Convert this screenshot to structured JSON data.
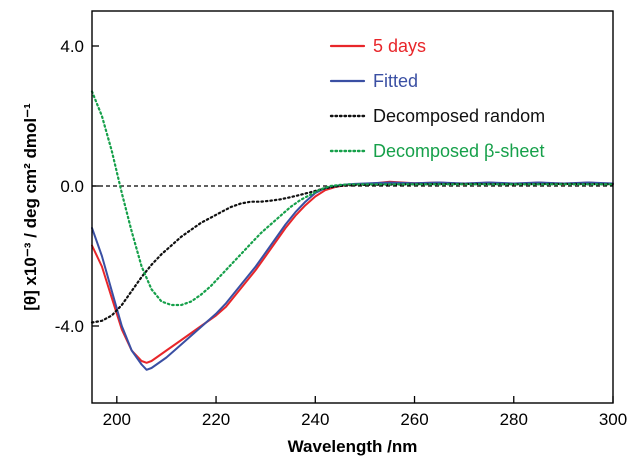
{
  "chart_data": {
    "type": "line",
    "xlabel": "Wavelength /nm",
    "ylabel": "[θ] x10⁻³ / deg cm² dmol⁻¹",
    "xlim": [
      195,
      300
    ],
    "ylim": [
      -6.2,
      5.0
    ],
    "xticks": [
      200,
      220,
      240,
      260,
      280,
      300
    ],
    "yticks": [
      {
        "value": 4.0,
        "label": "4.0"
      },
      {
        "value": 0.0,
        "label": "0.0"
      },
      {
        "value": -4.0,
        "label": "-4.0"
      }
    ],
    "legend_position": "top-right",
    "zero_line": true,
    "series": [
      {
        "name": "5 days",
        "color": "#e8262a",
        "style": "solid",
        "x": [
          195,
          197,
          199,
          201,
          203,
          205,
          206,
          207,
          208,
          210,
          212,
          214,
          216,
          218,
          220,
          222,
          224,
          226,
          228,
          230,
          232,
          234,
          236,
          238,
          240,
          242,
          244,
          246,
          248,
          250,
          255,
          260,
          265,
          270,
          275,
          280,
          285,
          290,
          295,
          300
        ],
        "y": [
          -1.7,
          -2.3,
          -3.2,
          -4.1,
          -4.7,
          -5.0,
          -5.05,
          -5.0,
          -4.9,
          -4.7,
          -4.5,
          -4.3,
          -4.1,
          -3.9,
          -3.7,
          -3.45,
          -3.1,
          -2.75,
          -2.4,
          -2.0,
          -1.6,
          -1.2,
          -0.85,
          -0.55,
          -0.3,
          -0.12,
          -0.03,
          0.02,
          0.05,
          0.05,
          0.12,
          0.08,
          0.1,
          0.05,
          0.1,
          0.05,
          0.1,
          0.05,
          0.1,
          0.05
        ]
      },
      {
        "name": "Fitted",
        "color": "#3a4fa3",
        "style": "solid",
        "x": [
          195,
          197,
          199,
          201,
          203,
          205,
          206,
          207,
          208,
          210,
          212,
          214,
          216,
          218,
          220,
          222,
          224,
          226,
          228,
          230,
          232,
          234,
          236,
          238,
          240,
          242,
          244,
          246,
          248,
          250,
          255,
          260,
          265,
          270,
          275,
          280,
          285,
          290,
          295,
          300
        ],
        "y": [
          -1.2,
          -2.0,
          -3.0,
          -4.0,
          -4.7,
          -5.1,
          -5.25,
          -5.2,
          -5.1,
          -4.9,
          -4.65,
          -4.4,
          -4.15,
          -3.9,
          -3.65,
          -3.35,
          -3.0,
          -2.65,
          -2.3,
          -1.9,
          -1.5,
          -1.1,
          -0.75,
          -0.45,
          -0.2,
          -0.06,
          0.0,
          0.04,
          0.06,
          0.07,
          0.1,
          0.08,
          0.1,
          0.07,
          0.1,
          0.07,
          0.1,
          0.07,
          0.1,
          0.07
        ]
      },
      {
        "name": "Decomposed random",
        "color": "#111111",
        "style": "dotted",
        "x": [
          195,
          197,
          199,
          201,
          203,
          205,
          207,
          209,
          211,
          213,
          215,
          217,
          219,
          221,
          223,
          225,
          227,
          229,
          231,
          233,
          235,
          237,
          239,
          241,
          243,
          245,
          247,
          250,
          260,
          270,
          280,
          290,
          300
        ],
        "y": [
          -3.9,
          -3.85,
          -3.7,
          -3.4,
          -3.0,
          -2.6,
          -2.25,
          -1.95,
          -1.7,
          -1.45,
          -1.25,
          -1.05,
          -0.9,
          -0.75,
          -0.6,
          -0.5,
          -0.45,
          -0.45,
          -0.42,
          -0.38,
          -0.32,
          -0.25,
          -0.18,
          -0.1,
          -0.04,
          0.0,
          0.02,
          0.03,
          0.05,
          0.06,
          0.05,
          0.06,
          0.05
        ]
      },
      {
        "name": "Decomposed β-sheet",
        "color": "#16a04a",
        "style": "dotted",
        "x": [
          195,
          197,
          199,
          201,
          203,
          205,
          207,
          209,
          211,
          213,
          215,
          217,
          219,
          221,
          223,
          225,
          227,
          229,
          231,
          233,
          235,
          237,
          239,
          241,
          243,
          245,
          247,
          250,
          260,
          270,
          280,
          290,
          300
        ],
        "y": [
          2.7,
          2.0,
          1.0,
          -0.2,
          -1.3,
          -2.3,
          -2.95,
          -3.3,
          -3.4,
          -3.4,
          -3.3,
          -3.1,
          -2.85,
          -2.55,
          -2.25,
          -1.95,
          -1.65,
          -1.35,
          -1.1,
          -0.85,
          -0.6,
          -0.4,
          -0.25,
          -0.1,
          0.0,
          0.03,
          0.05,
          0.05,
          0.05,
          0.05,
          0.05,
          0.05,
          0.05
        ]
      }
    ]
  }
}
